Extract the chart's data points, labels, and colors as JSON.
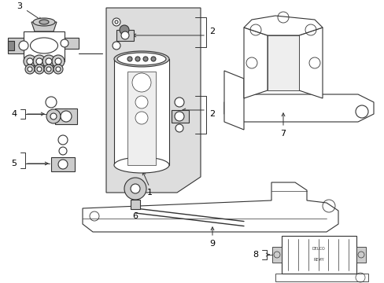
{
  "bg_color": "#ffffff",
  "lc": "#333333",
  "gc": "#cccccc",
  "lgc": "#e8e8e8",
  "fig_w": 4.89,
  "fig_h": 3.6,
  "dpi": 100,
  "xlim": [
    0,
    489
  ],
  "ylim": [
    0,
    360
  ]
}
